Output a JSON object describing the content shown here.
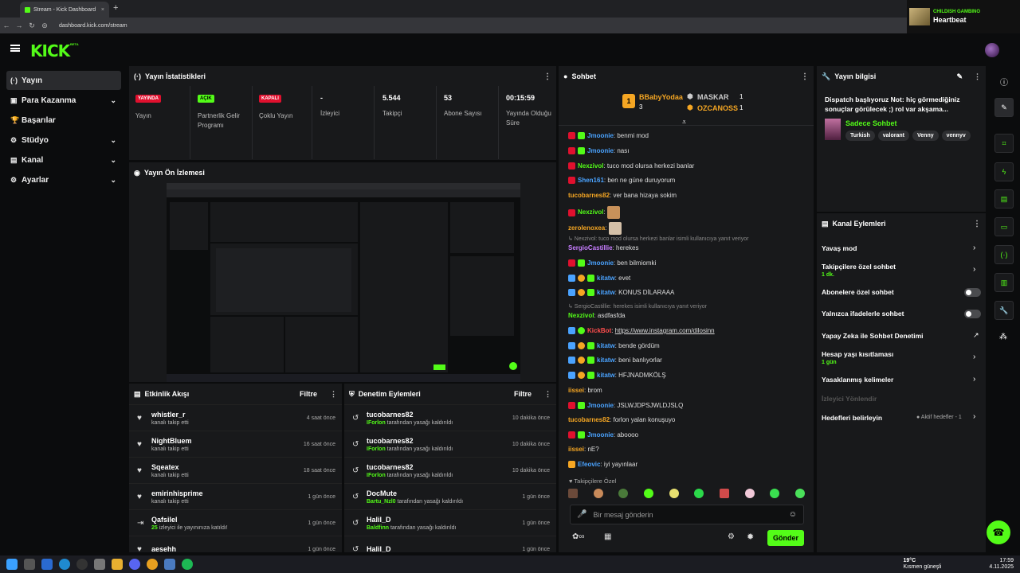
{
  "browser": {
    "tab_title": "Stream - Kick Dashboard",
    "url": "dashboard.kick.com/stream"
  },
  "media": {
    "artist": "CHILDISH GAMBINO",
    "track": "Heartbeat"
  },
  "logo": {
    "text": "KICK",
    "beta": "BETA"
  },
  "nav": [
    {
      "label": "Yayın",
      "icon": "(·)"
    },
    {
      "label": "Para Kazanma",
      "icon": "▣"
    },
    {
      "label": "Başarılar",
      "icon": "🏆"
    },
    {
      "label": "Stüdyo",
      "icon": "⚙"
    },
    {
      "label": "Kanal",
      "icon": "▤"
    },
    {
      "label": "Ayarlar",
      "icon": "⚙"
    }
  ],
  "stats": {
    "title": "Yayın İstatistikleri",
    "items": [
      {
        "value": "YAYINDA",
        "label": "Yayın",
        "kind": "badge",
        "color": "#e0102e",
        "fg": "#fff"
      },
      {
        "value": "AÇIK",
        "label": "Partnerlik Gelir Programı",
        "kind": "badge",
        "color": "#53fc18",
        "fg": "#000"
      },
      {
        "value": "KAPALI",
        "label": "Çoklu Yayın",
        "kind": "badge",
        "color": "#e0102e",
        "fg": "#fff"
      },
      {
        "value": "-",
        "label": "İzleyici",
        "kind": "text"
      },
      {
        "value": "5.544",
        "label": "Takipçi",
        "kind": "text"
      },
      {
        "value": "53",
        "label": "Abone Sayısı",
        "kind": "text"
      },
      {
        "value": "00:15:59",
        "label": "Yayında Olduğu Süre",
        "kind": "text"
      }
    ]
  },
  "preview": {
    "title": "Yayın Ön İzlemesi"
  },
  "activity": {
    "title": "Etkinlik Akışı",
    "filter": "Filtre",
    "rows": [
      {
        "name": "whistler_r",
        "sub": "kanalı takip etti",
        "time": "4 saat önce",
        "icon": "♥"
      },
      {
        "name": "NightBluem",
        "sub": "kanalı takip etti",
        "time": "16 saat önce",
        "icon": "♥"
      },
      {
        "name": "Sqeatex",
        "sub": "kanalı takip etti",
        "time": "18 saat önce",
        "icon": "♥"
      },
      {
        "name": "emirinhisprime",
        "sub": "kanalı takip etti",
        "time": "1 gün önce",
        "icon": "♥"
      },
      {
        "name": "Qafsilel",
        "sub_green": "25",
        "sub": "izleyici ile yayınınıza katıldı!",
        "time": "1 gün önce",
        "icon": "⇥"
      },
      {
        "name": "aesehh",
        "sub": "",
        "time": "1 gün önce",
        "icon": "♥"
      }
    ]
  },
  "moderation": {
    "title": "Denetim Eylemleri",
    "filter": "Filtre",
    "rows": [
      {
        "name": "tucobarnes82",
        "by": "IForlon",
        "sub": "tarafından yasağı kaldırıldı",
        "time": "10 dakika önce"
      },
      {
        "name": "tucobarnes82",
        "by": "IForlon",
        "sub": "tarafından yasağı kaldırıldı",
        "time": "10 dakika önce"
      },
      {
        "name": "tucobarnes82",
        "by": "IForlon",
        "sub": "tarafından yasağı kaldırıldı",
        "time": "10 dakika önce"
      },
      {
        "name": "DocMute",
        "by": "Bartu_Nzl0",
        "sub": "tarafından yasağı kaldırıldı",
        "time": "1 gün önce"
      },
      {
        "name": "Halil_D",
        "by": "Baldfinn",
        "sub": "tarafından yasağı kaldırıldı",
        "time": "1 gün önce"
      },
      {
        "name": "Halil_D",
        "by": "",
        "sub": "",
        "time": "1 gün önce"
      }
    ]
  },
  "chat": {
    "title": "Sohbet",
    "leader1": {
      "name": "BBabyYodaa",
      "count": "3"
    },
    "leader2": {
      "name": "MASKAR",
      "count": "1"
    },
    "leader3": {
      "name": "OZCANOSS",
      "count": "1"
    },
    "messages": [
      {
        "user": "Jmoonie",
        "text": "benmi mod",
        "color": "#4aa3ff"
      },
      {
        "user": "Jmoonie",
        "text": "nası",
        "color": "#4aa3ff"
      },
      {
        "user": "Nexzivol",
        "text": "tuco mod olursa herkezi banlar",
        "color": "#53fc18"
      },
      {
        "user": "Shen161",
        "text": "ben ne güne duruyorum",
        "color": "#4aa3ff"
      },
      {
        "user": "tucobarnes82",
        "text": "ver bana hizaya sokim",
        "color": "#f5a623"
      },
      {
        "user": "Nexzivol",
        "text": "",
        "color": "#53fc18"
      },
      {
        "user": "zerolenoxea",
        "text": "",
        "color": "#f5a623"
      },
      {
        "user": "",
        "text": "↳ Nexzivol: tuco mod olursa herkezi banlar isimli kullanıcıya yanıt veriyor",
        "color": "#888"
      },
      {
        "user": "SergioCastillie",
        "text": "herekes",
        "color": "#c77dff"
      },
      {
        "user": "Jmoonie",
        "text": "ben bilmiomki",
        "color": "#4aa3ff"
      },
      {
        "user": "kitatw",
        "text": "evet",
        "color": "#4aa3ff"
      },
      {
        "user": "kitatw",
        "text": "KONUS DİLARAAA",
        "color": "#4aa3ff"
      },
      {
        "user": "",
        "text": "↳ SergioCastillie: herekes isimli kullanıcıya yanıt veriyor",
        "color": "#888"
      },
      {
        "user": "Nexzivol",
        "text": "asdfasfda",
        "color": "#53fc18"
      },
      {
        "user": "KickBot",
        "text": "https://www.instagram.com/dilosinn",
        "color": "#ff4d4d"
      },
      {
        "user": "kitatw",
        "text": "bende gördüm",
        "color": "#4aa3ff"
      },
      {
        "user": "kitatw",
        "text": "beni banlıyorlar",
        "color": "#4aa3ff"
      },
      {
        "user": "kitatw",
        "text": "HFJNADMKÖLŞ",
        "color": "#4aa3ff"
      },
      {
        "user": "iissei",
        "text": "brom",
        "color": "#f5a623"
      },
      {
        "user": "Jmoonie",
        "text": "JSLWJDPSJWLDJSLQ",
        "color": "#4aa3ff"
      },
      {
        "user": "tucobarnes82",
        "text": "forlon yalan konuşuyo",
        "color": "#f5a623"
      },
      {
        "user": "Jmoonie",
        "text": "aboooo",
        "color": "#4aa3ff"
      },
      {
        "user": "iissei",
        "text": "nE?",
        "color": "#f5a623"
      },
      {
        "user": "Efeovic",
        "text": "iyi yayınlaar",
        "color": "#4aa3ff"
      }
    ],
    "followers_only": "Takipçilere Özel",
    "input_placeholder": "Bir mesaj gönderin",
    "send": "Gönder"
  },
  "info": {
    "title": "Yayın bilgisi",
    "stream_title": "Dispatch başlıyoruz Not: hiç görmediğiniz sonuçlar görülecek ;) rol var akşama...",
    "category": "Sadece Sohbet",
    "tags": [
      "Turkish",
      "valorant",
      "Venny",
      "vennyv"
    ]
  },
  "channel_actions": {
    "title": "Kanal Eylemleri",
    "items": [
      {
        "label": "Yavaş mod",
        "control": "chevron"
      },
      {
        "label": "Takipçilere özel sohbet",
        "sub": "1 dk.",
        "control": "chevron"
      },
      {
        "label": "Abonelere özel sohbet",
        "control": "toggle"
      },
      {
        "label": "Yalnızca ifadelerle sohbet",
        "control": "toggle"
      },
      {
        "label": "Yapay Zeka ile Sohbet Denetimi",
        "control": "ext"
      },
      {
        "label": "Hesap yaşı kısıtlaması",
        "sub": "1 gün",
        "control": "chevron"
      },
      {
        "label": "Yasaklanmış kelimeler",
        "control": "chevron"
      },
      {
        "label": "İzleyici Yönlendir",
        "control": "none",
        "disabled": true
      },
      {
        "label": "Hedefleri belirleyin",
        "control": "chevron",
        "right": "● Aktif hedefler - 1"
      }
    ]
  },
  "taskbar": {
    "weather": "19°C",
    "weather_sub": "Kısmen güneşli",
    "time": "17:59",
    "date": "4.11.2025"
  }
}
